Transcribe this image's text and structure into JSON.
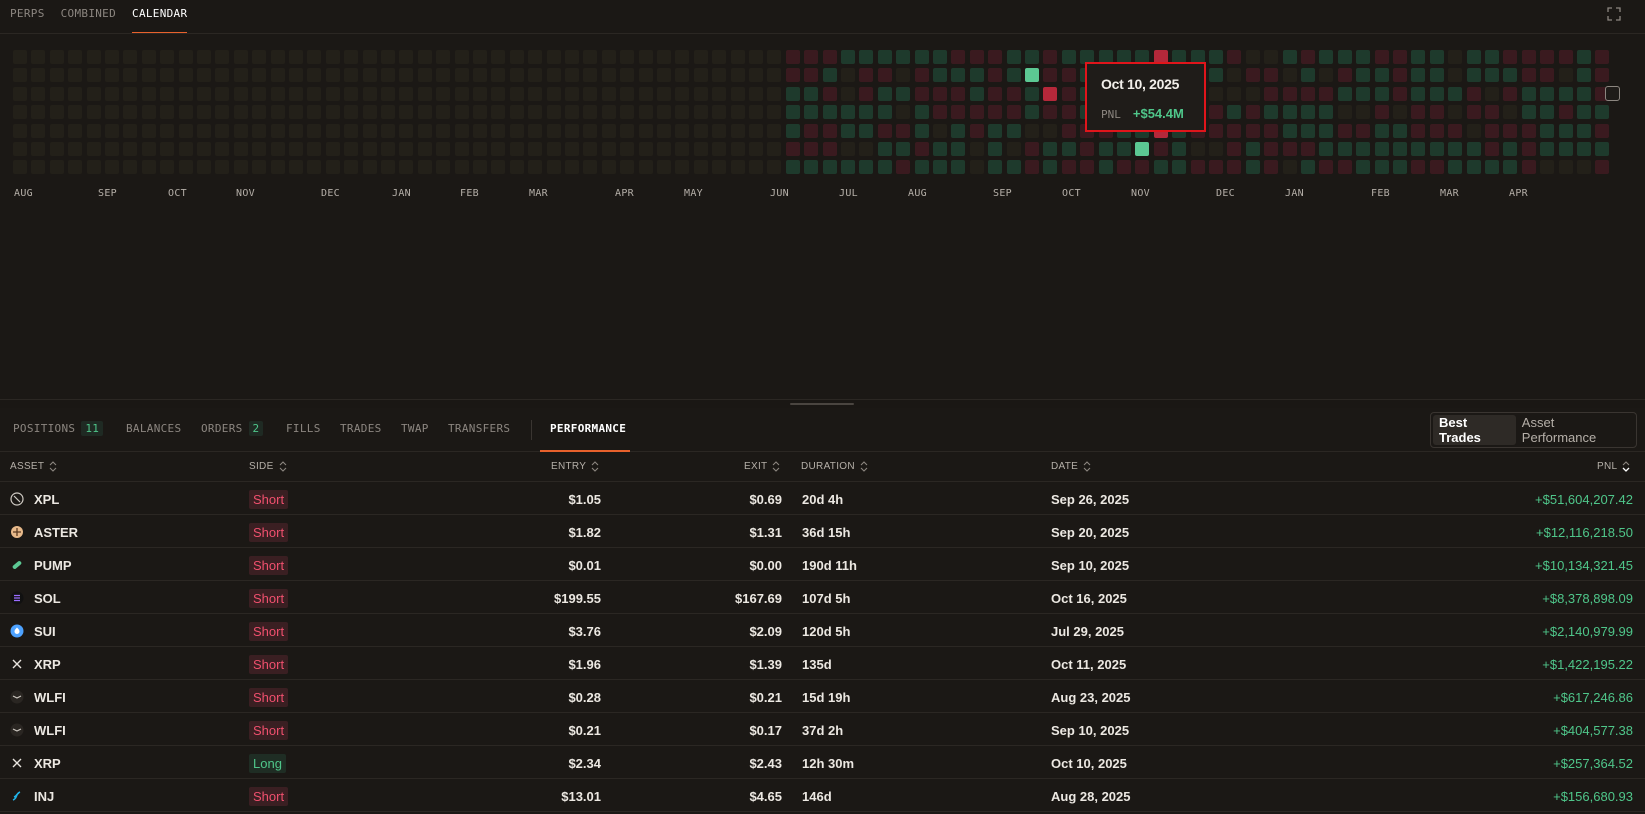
{
  "top_tabs": [
    {
      "label": "PERPS"
    },
    {
      "label": "COMBINED"
    },
    {
      "label": "CALENDAR"
    }
  ],
  "calendar": {
    "months": [
      "AUG",
      "SEP",
      "OCT",
      "NOV",
      "DEC",
      "JAN",
      "FEB",
      "MAR",
      "APR",
      "MAY",
      "JUN",
      "JUL",
      "AUG",
      "SEP",
      "OCT",
      "NOV",
      "DEC",
      "JAN",
      "FEB",
      "MAR",
      "APR"
    ],
    "colors": {
      "empty": "#232019",
      "green_dim": "#1e3a2c",
      "red_dim": "#3a1a1f",
      "green_bright": "#5cc893",
      "red_bright": "#b5283a"
    }
  },
  "tooltip": {
    "date": "Oct 10, 2025",
    "label": "PNL",
    "value": "+$54.4M"
  },
  "bottom_tabs": {
    "positions": "POSITIONS",
    "positions_count": "11",
    "balances": "BALANCES",
    "orders": "ORDERS",
    "orders_count": "2",
    "fills": "FILLS",
    "trades": "TRADES",
    "twap": "TWAP",
    "transfers": "TRANSFERS",
    "performance": "PERFORMANCE"
  },
  "toggle": {
    "best_trades": "Best Trades",
    "asset_performance": "Asset Performance"
  },
  "columns": {
    "asset": "ASSET",
    "side": "SIDE",
    "entry": "ENTRY",
    "exit": "EXIT",
    "duration": "DURATION",
    "date": "DATE",
    "pnl": "PNL"
  },
  "rows": [
    {
      "asset": "XPL",
      "icon": "xpl-icon",
      "side": "Short",
      "entry": "$1.05",
      "exit": "$0.69",
      "duration": "20d 4h",
      "date": "Sep 26, 2025",
      "pnl": "+$51,604,207.42"
    },
    {
      "asset": "ASTER",
      "icon": "aster-icon",
      "side": "Short",
      "entry": "$1.82",
      "exit": "$1.31",
      "duration": "36d 15h",
      "date": "Sep 20, 2025",
      "pnl": "+$12,116,218.50"
    },
    {
      "asset": "PUMP",
      "icon": "pump-icon",
      "side": "Short",
      "entry": "$0.01",
      "exit": "$0.00",
      "duration": "190d 11h",
      "date": "Sep 10, 2025",
      "pnl": "+$10,134,321.45"
    },
    {
      "asset": "SOL",
      "icon": "sol-icon",
      "side": "Short",
      "entry": "$199.55",
      "exit": "$167.69",
      "duration": "107d 5h",
      "date": "Oct 16, 2025",
      "pnl": "+$8,378,898.09"
    },
    {
      "asset": "SUI",
      "icon": "sui-icon",
      "side": "Short",
      "entry": "$3.76",
      "exit": "$2.09",
      "duration": "120d 5h",
      "date": "Jul 29, 2025",
      "pnl": "+$2,140,979.99"
    },
    {
      "asset": "XRP",
      "icon": "xrp-icon",
      "side": "Short",
      "entry": "$1.96",
      "exit": "$1.39",
      "duration": "135d",
      "date": "Oct 11, 2025",
      "pnl": "+$1,422,195.22"
    },
    {
      "asset": "WLFI",
      "icon": "wlfi-icon",
      "side": "Short",
      "entry": "$0.28",
      "exit": "$0.21",
      "duration": "15d 19h",
      "date": "Aug 23, 2025",
      "pnl": "+$617,246.86"
    },
    {
      "asset": "WLFI",
      "icon": "wlfi-icon",
      "side": "Short",
      "entry": "$0.21",
      "exit": "$0.17",
      "duration": "37d 2h",
      "date": "Sep 10, 2025",
      "pnl": "+$404,577.38"
    },
    {
      "asset": "XRP",
      "icon": "xrp-icon",
      "side": "Long",
      "entry": "$2.34",
      "exit": "$2.43",
      "duration": "12h 30m",
      "date": "Oct 10, 2025",
      "pnl": "+$257,364.52"
    },
    {
      "asset": "INJ",
      "icon": "inj-icon",
      "side": "Short",
      "entry": "$13.01",
      "exit": "$4.65",
      "duration": "146d",
      "date": "Aug 28, 2025",
      "pnl": "+$156,680.93"
    }
  ]
}
